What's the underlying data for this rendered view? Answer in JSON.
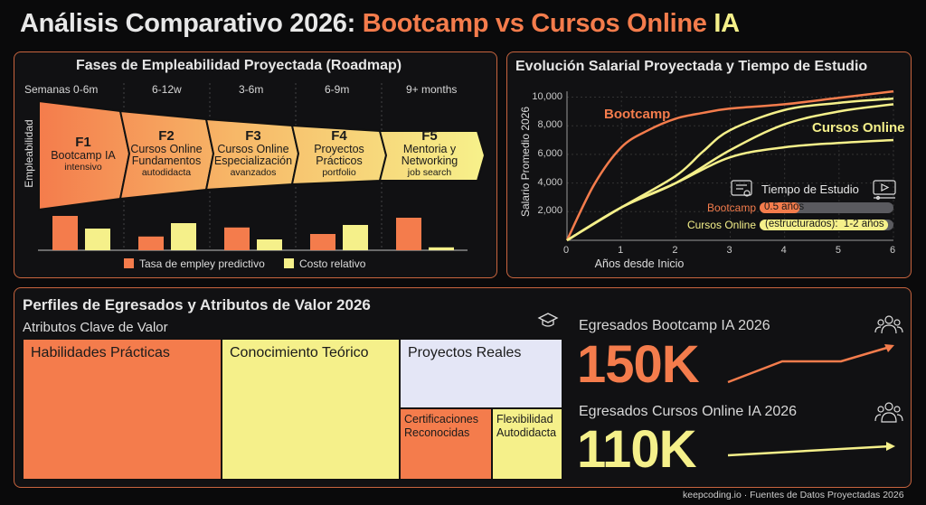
{
  "title": {
    "part1": "Análisis Comparativo 2026: ",
    "part2": "Bootcamp vs Cursos Online ",
    "part3": "IA"
  },
  "colors": {
    "orange": "#f47c4c",
    "yellow": "#f5f08a",
    "lavender": "#e4e6f6",
    "panel_border": "#c8643e"
  },
  "roadmap": {
    "title": "Fases de Empleabilidad Proyectada (Roadmap)",
    "ylabel": "Empleabilidad",
    "periods": [
      "Semanas 0-6m",
      "6-12w",
      "3-6m",
      "6-9m",
      "9+ months"
    ],
    "phases": [
      {
        "code": "F1",
        "name": "Bootcamp IA",
        "sub": "intensivo"
      },
      {
        "code": "F2",
        "name": "Cursos Online Fundamentos",
        "sub": "autodidacta"
      },
      {
        "code": "F3",
        "name": "Cursos Online Especialización",
        "sub": "avanzados"
      },
      {
        "code": "F4",
        "name": "Proyectos Prácticos",
        "sub": "portfolio"
      },
      {
        "code": "F5",
        "name": "Mentoria y Networking",
        "sub": "job search"
      }
    ],
    "legend": [
      "Tasa de empley predictivo",
      "Costo relativo"
    ]
  },
  "salary": {
    "title": "Evolución Salarial Proyectada y Tiempo de Estudio",
    "ylabel": "Salario Promedio 2026",
    "xlabel": "Años desde Inicio",
    "label_bootcamp": "Bootcamp",
    "label_online": "Cursos Online",
    "study": {
      "title": "Tiempo de Estudio",
      "rows": [
        {
          "label": "Bootcamp",
          "value": "0.5 años",
          "fill": 0.3
        },
        {
          "label": "Cursos Online",
          "value": "(estructurados):  1-2 años",
          "fill": 0.96
        }
      ]
    }
  },
  "profiles": {
    "title": "Perfiles de Egresados y Atributos de Valor 2026",
    "subtitle": "Atributos Clave de Valor",
    "cells": [
      "Habilidades Prácticas",
      "Conocimiento Teórico",
      "Proyectos Reales",
      "Certificaciones Reconocidas",
      "Flexibilidad Autodidacta"
    ],
    "kpis": [
      {
        "label": "Egresados Bootcamp IA 2026",
        "value": "150K"
      },
      {
        "label": "Egresados Cursos Online IA 2026",
        "value": "110K"
      }
    ]
  },
  "footer": "keepcoding.io · Fuentes de Datos Proyectadas 2026",
  "chart_data": [
    {
      "type": "bar",
      "categories": [
        "F1",
        "F2",
        "F3",
        "F4",
        "F5"
      ],
      "series": [
        {
          "name": "Tasa de empley predictivo",
          "values": [
            95,
            38,
            63,
            45,
            90
          ]
        },
        {
          "name": "Costo relativo",
          "values": [
            60,
            75,
            30,
            70,
            8
          ]
        }
      ],
      "ylim": [
        0,
        100
      ],
      "legend": "bottom"
    },
    {
      "type": "line",
      "title": "Evolución Salarial Proyectada y Tiempo de Estudio",
      "xlabel": "Años desde Inicio",
      "ylabel": "Salario Promedio 2026",
      "xlim": [
        0,
        6
      ],
      "ylim": [
        0,
        10500
      ],
      "xticks": [
        0,
        1,
        2,
        3,
        4,
        5,
        6
      ],
      "yticks": [
        "2,000",
        "4,000",
        "6,000",
        "8,000",
        "10,000"
      ],
      "ytick_values": [
        2000,
        4000,
        6000,
        8000,
        10000
      ],
      "grid": true,
      "series": [
        {
          "name": "Bootcamp",
          "x": [
            0,
            0.5,
            1,
            1.5,
            2,
            2.5,
            3,
            4,
            5,
            6
          ],
          "y": [
            0,
            3900,
            6500,
            7700,
            8500,
            8900,
            9200,
            9500,
            9950,
            10400
          ]
        },
        {
          "name": "Cursos Online",
          "x": [
            0,
            1,
            2,
            2.5,
            3,
            4,
            5,
            6
          ],
          "y": [
            0,
            2300,
            4500,
            6200,
            7700,
            9100,
            9600,
            9900
          ]
        },
        {
          "name": "Cursos Online",
          "x": [
            0,
            1,
            2,
            3,
            4,
            5,
            6
          ],
          "y": [
            0,
            2300,
            4000,
            6300,
            8100,
            9000,
            9500
          ]
        },
        {
          "name": "Cursos Online",
          "x": [
            0,
            1,
            2,
            3,
            4,
            5,
            6
          ],
          "y": [
            0,
            2300,
            4000,
            5800,
            6500,
            6800,
            7000
          ]
        }
      ]
    }
  ]
}
